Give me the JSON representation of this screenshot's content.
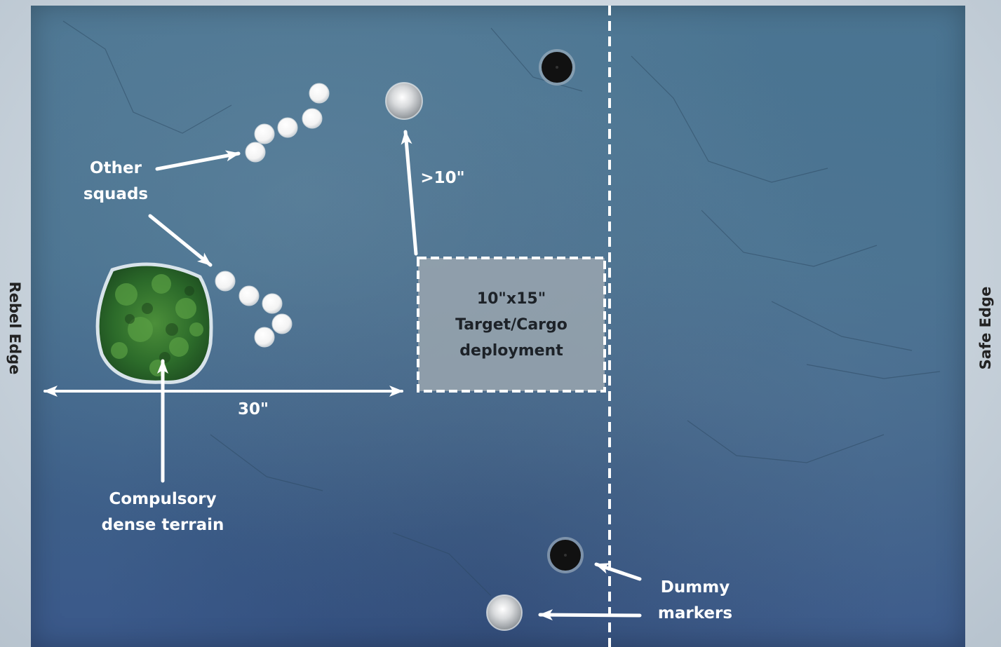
{
  "edges": {
    "left": "Rebel Edge",
    "right": "Safe Edge"
  },
  "deployment_zone": {
    "line1": "10\"x15\"",
    "line2": "Target/Cargo",
    "line3": "deployment"
  },
  "labels": {
    "other_squads_1": "Other",
    "other_squads_2": "squads",
    "distance_gt10": ">10\"",
    "distance_30": "30\"",
    "terrain_1": "Compulsory",
    "terrain_2": "dense terrain",
    "dummy_1": "Dummy",
    "dummy_2": "markers"
  },
  "colors": {
    "board": "#46708f",
    "annotation": "#ffffff",
    "deployment_fill": "#9aa6af",
    "terrain": "#2f6b2e"
  }
}
